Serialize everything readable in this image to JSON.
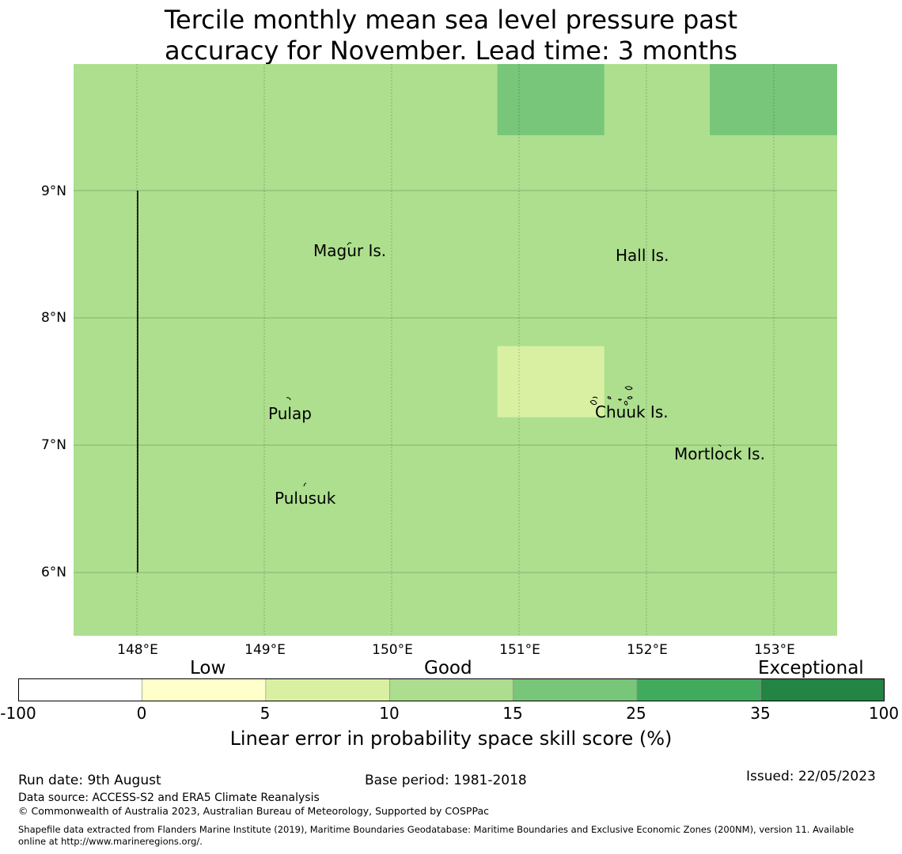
{
  "title": {
    "line1": "Tercile monthly mean sea level pressure past",
    "line2": "accuracy for November. Lead time: 3 months"
  },
  "map": {
    "base_color": "#addf8e",
    "cells": [
      {
        "lon": [
          150.83,
          151.67
        ],
        "lat": [
          9.44,
          10.0
        ],
        "color": "#78c679"
      },
      {
        "lon": [
          152.5,
          153.5
        ],
        "lat": [
          9.44,
          10.0
        ],
        "color": "#78c679"
      },
      {
        "lon": [
          150.83,
          151.67
        ],
        "lat": [
          7.22,
          7.78
        ],
        "color": "#d9f0a3"
      }
    ],
    "lon_range": [
      147.5,
      153.5
    ],
    "lat_range": [
      5.5,
      10.0
    ],
    "lat_ticks": [
      "9°N",
      "8°N",
      "7°N",
      "6°N"
    ],
    "lon_ticks": [
      "148°E",
      "149°E",
      "150°E",
      "151°E",
      "152°E",
      "153°E"
    ],
    "places": [
      {
        "name": "Magur Is."
      },
      {
        "name": "Hall Is."
      },
      {
        "name": "Pulap"
      },
      {
        "name": "Chuuk Is."
      },
      {
        "name": "Mortlock Is."
      },
      {
        "name": "Pulusuk"
      }
    ]
  },
  "colorbar": {
    "categories": [
      "Low",
      "Good",
      "Exceptional"
    ],
    "colors": [
      "#ffffff",
      "#ffffcc",
      "#d9f0a3",
      "#addd8e",
      "#78c679",
      "#41ab5d",
      "#238443"
    ],
    "ticks": [
      "-100",
      "0",
      "5",
      "10",
      "15",
      "25",
      "35",
      "100"
    ],
    "label": "Linear error in probability space skill score (%)"
  },
  "footer": {
    "run_date": "Run date: 9th August",
    "base_period": "Base period: 1981-2018",
    "issued": "Issued: 22/05/2023",
    "data_source": "Data source: ACCESS-S2 and ERA5 Climate Reanalysis",
    "copyright": "© Commonwealth of Australia 2023, Australian Bureau of Meteorology, Supported by COSPPac",
    "shapefile_line1": "Shapefile data extracted from Flanders Marine Institute (2019), Maritime Boundaries Geodatabase: Maritime Boundaries and Exclusive Economic Zones (200NM), version 11. Available",
    "shapefile_line2": "online at http://www.marineregions.org/."
  }
}
